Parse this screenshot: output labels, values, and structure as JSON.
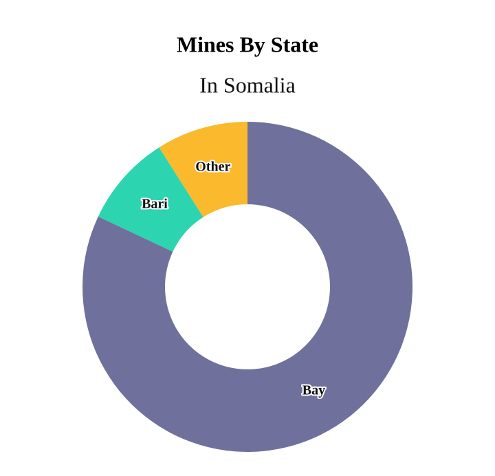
{
  "chart_data": {
    "type": "donut",
    "title": "Mines By State",
    "subtitle": "In Somalia",
    "categories": [
      "Bay",
      "Bari",
      "Other"
    ],
    "values": [
      82,
      9,
      9
    ],
    "colors": [
      "#6f719c",
      "#2dd4b0",
      "#fbb92d"
    ]
  }
}
